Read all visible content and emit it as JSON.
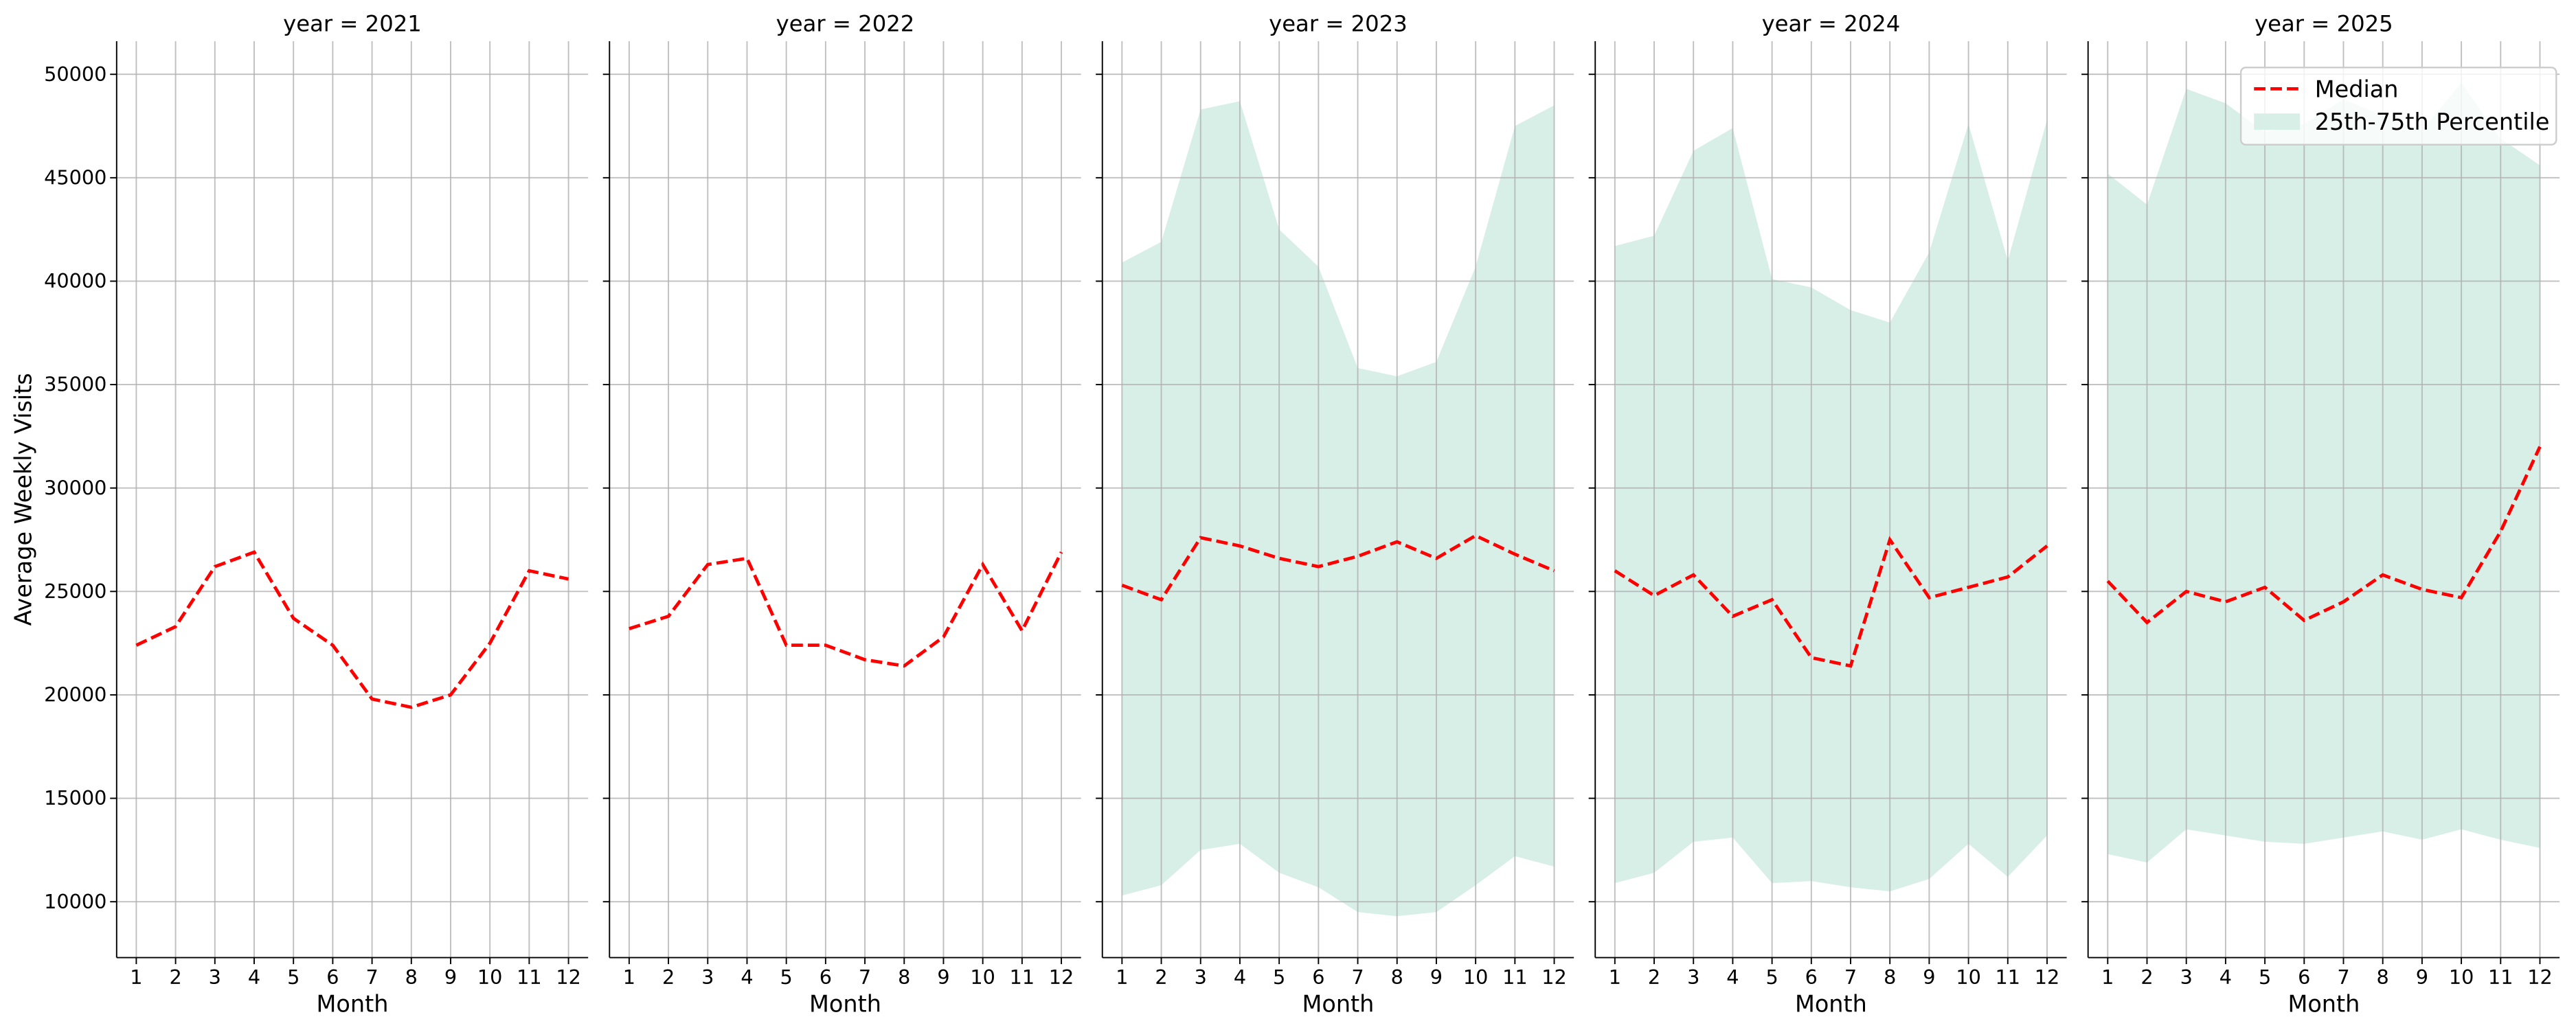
{
  "chart_data": [
    {
      "type": "line",
      "title": "year = 2021",
      "x_label": "Month",
      "y_label": "Average Weekly Visits",
      "x": [
        1,
        2,
        3,
        4,
        5,
        6,
        7,
        8,
        9,
        10,
        11,
        12
      ],
      "xlim": [
        0.5,
        12.5
      ],
      "xticks": [
        1,
        2,
        3,
        4,
        5,
        6,
        7,
        8,
        9,
        10,
        11,
        12
      ],
      "ylim": [
        7300,
        51600
      ],
      "yticks": [
        10000,
        15000,
        20000,
        25000,
        30000,
        35000,
        40000,
        45000,
        50000
      ],
      "grid": true,
      "series": [
        {
          "color": "#ff0000",
          "values": [
            22400,
            23300,
            26200,
            26900,
            23700,
            22400,
            19800,
            19400,
            20000,
            22500,
            26000,
            25600
          ]
        }
      ]
    },
    {
      "type": "line",
      "title": "year = 2022",
      "x_label": "Month",
      "x": [
        1,
        2,
        3,
        4,
        5,
        6,
        7,
        8,
        9,
        10,
        11,
        12
      ],
      "xlim": [
        0.5,
        12.5
      ],
      "xticks": [
        1,
        2,
        3,
        4,
        5,
        6,
        7,
        8,
        9,
        10,
        11,
        12
      ],
      "ylim": [
        7300,
        51600
      ],
      "yticks": [
        10000,
        15000,
        20000,
        25000,
        30000,
        35000,
        40000,
        45000,
        50000
      ],
      "grid": true,
      "series": [
        {
          "color": "#ff0000",
          "values": [
            23200,
            23800,
            26300,
            26600,
            22400,
            22400,
            21700,
            21400,
            22800,
            26300,
            23100,
            26900
          ]
        }
      ]
    },
    {
      "type": "line",
      "title": "year = 2023",
      "x_label": "Month",
      "x": [
        1,
        2,
        3,
        4,
        5,
        6,
        7,
        8,
        9,
        10,
        11,
        12
      ],
      "xlim": [
        0.5,
        12.5
      ],
      "xticks": [
        1,
        2,
        3,
        4,
        5,
        6,
        7,
        8,
        9,
        10,
        11,
        12
      ],
      "ylim": [
        7300,
        51600
      ],
      "yticks": [
        10000,
        15000,
        20000,
        25000,
        30000,
        35000,
        40000,
        45000,
        50000
      ],
      "grid": true,
      "series": [
        {
          "color": "#ff0000",
          "values": [
            25300,
            24600,
            27600,
            27200,
            26600,
            26200,
            26700,
            27400,
            26600,
            27700,
            26800,
            26000
          ]
        }
      ],
      "band": {
        "color": "#d8efe8",
        "lower": [
          10300,
          10800,
          12500,
          12800,
          11400,
          10700,
          9500,
          9300,
          9500,
          10800,
          12200,
          11700
        ],
        "upper": [
          40900,
          41900,
          48300,
          48700,
          42500,
          40700,
          35800,
          35400,
          36100,
          40700,
          47500,
          48500
        ]
      }
    },
    {
      "type": "line",
      "title": "year = 2024",
      "x_label": "Month",
      "x": [
        1,
        2,
        3,
        4,
        5,
        6,
        7,
        8,
        9,
        10,
        11,
        12
      ],
      "xlim": [
        0.5,
        12.5
      ],
      "xticks": [
        1,
        2,
        3,
        4,
        5,
        6,
        7,
        8,
        9,
        10,
        11,
        12
      ],
      "ylim": [
        7300,
        51600
      ],
      "yticks": [
        10000,
        15000,
        20000,
        25000,
        30000,
        35000,
        40000,
        45000,
        50000
      ],
      "grid": true,
      "series": [
        {
          "color": "#ff0000",
          "values": [
            26000,
            24800,
            25800,
            23800,
            24600,
            21800,
            21400,
            27500,
            24700,
            25200,
            25700,
            27200
          ]
        }
      ],
      "band": {
        "color": "#d8efe8",
        "lower": [
          10900,
          11400,
          12900,
          13100,
          10900,
          11000,
          10700,
          10500,
          11100,
          12800,
          11200,
          13200
        ],
        "upper": [
          41700,
          42200,
          46300,
          47400,
          40100,
          39700,
          38600,
          38000,
          41400,
          47600,
          41000,
          47800
        ]
      }
    },
    {
      "type": "line",
      "title": "year = 2025",
      "x_label": "Month",
      "x": [
        1,
        2,
        3,
        4,
        5,
        6,
        7,
        8,
        9,
        10,
        11,
        12
      ],
      "xlim": [
        0.5,
        12.5
      ],
      "xticks": [
        1,
        2,
        3,
        4,
        5,
        6,
        7,
        8,
        9,
        10,
        11,
        12
      ],
      "ylim": [
        7300,
        51600
      ],
      "yticks": [
        10000,
        15000,
        20000,
        25000,
        30000,
        35000,
        40000,
        45000,
        50000
      ],
      "grid": true,
      "series": [
        {
          "name": "Median",
          "color": "#ff0000",
          "values": [
            25500,
            23500,
            25000,
            24500,
            25200,
            23600,
            24500,
            25800,
            25100,
            24700,
            27900,
            32000
          ]
        }
      ],
      "band": {
        "name": "25th-75th Percentile",
        "color": "#d8efe8",
        "lower": [
          12300,
          11900,
          13500,
          13200,
          12900,
          12800,
          13100,
          13400,
          13000,
          13500,
          13000,
          12600
        ],
        "upper": [
          45200,
          43700,
          49300,
          48600,
          47200,
          47600,
          48800,
          48000,
          47300,
          49600,
          46900,
          45600
        ]
      },
      "legend": "upper right"
    }
  ]
}
